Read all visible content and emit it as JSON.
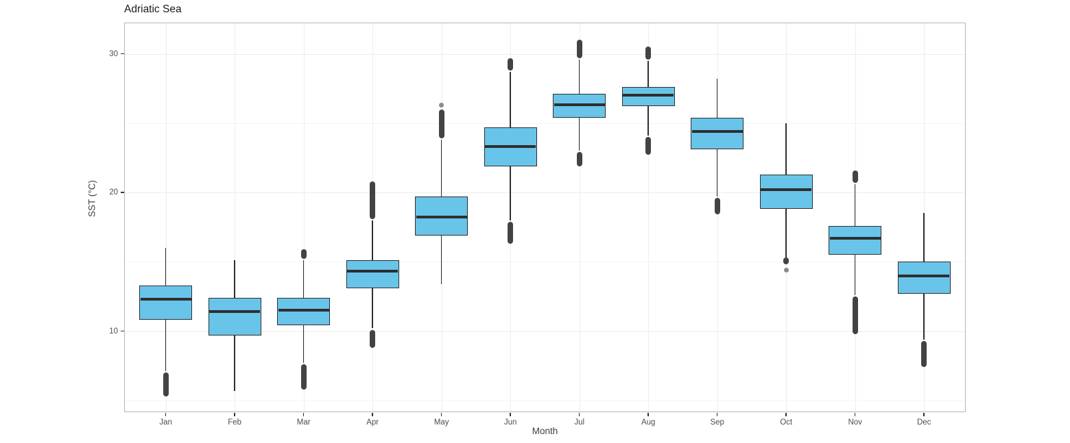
{
  "title": "Adriatic Sea",
  "chart_data": {
    "type": "boxplot",
    "title": "Adriatic Sea",
    "xlabel": "Month",
    "ylabel": "SST (°C)",
    "categories": [
      "Jan",
      "Feb",
      "Mar",
      "Apr",
      "May",
      "Jun",
      "Jul",
      "Aug",
      "Sep",
      "Oct",
      "Nov",
      "Dec"
    ],
    "yticks": [
      10,
      20,
      30
    ],
    "yticks_minor": [
      5,
      15,
      25
    ],
    "ylim": [
      4.1,
      32.2
    ],
    "grid": true,
    "legend": "none",
    "series": [
      {
        "month": "Jan",
        "whisker_low": 7.1,
        "q1": 10.8,
        "median": 12.3,
        "q3": 13.3,
        "whisker_high": 16.0,
        "outliers_low": [
          [
            5.3,
            7.0
          ]
        ],
        "outliers_high": []
      },
      {
        "month": "Feb",
        "whisker_low": 5.7,
        "q1": 9.7,
        "median": 11.4,
        "q3": 12.4,
        "whisker_high": 15.1,
        "outliers_low": [],
        "outliers_high": []
      },
      {
        "month": "Mar",
        "whisker_low": 7.7,
        "q1": 10.4,
        "median": 11.5,
        "q3": 12.4,
        "whisker_high": 15.1,
        "outliers_low": [
          [
            5.8,
            7.6
          ]
        ],
        "outliers_high": [
          [
            15.2,
            15.9
          ]
        ]
      },
      {
        "month": "Apr",
        "whisker_low": 10.2,
        "q1": 13.1,
        "median": 14.3,
        "q3": 15.1,
        "whisker_high": 18.0,
        "outliers_low": [
          [
            8.8,
            10.1
          ]
        ],
        "outliers_high": [
          [
            18.1,
            20.8
          ]
        ]
      },
      {
        "month": "May",
        "whisker_low": 13.4,
        "q1": 16.9,
        "median": 18.2,
        "q3": 19.7,
        "whisker_high": 23.8,
        "outliers_low": [],
        "outliers_high": [
          [
            23.9,
            26.0
          ],
          [
            26.2,
            26.4
          ]
        ]
      },
      {
        "month": "Jun",
        "whisker_low": 18.0,
        "q1": 21.9,
        "median": 23.3,
        "q3": 24.7,
        "whisker_high": 28.7,
        "outliers_low": [
          [
            16.3,
            17.9
          ]
        ],
        "outliers_high": [
          [
            28.8,
            29.7
          ]
        ]
      },
      {
        "month": "Jul",
        "whisker_low": 23.0,
        "q1": 25.4,
        "median": 26.3,
        "q3": 27.1,
        "whisker_high": 29.6,
        "outliers_low": [
          [
            21.9,
            22.9
          ]
        ],
        "outliers_high": [
          [
            29.7,
            31.0
          ]
        ]
      },
      {
        "month": "Aug",
        "whisker_low": 24.1,
        "q1": 26.2,
        "median": 27.0,
        "q3": 27.6,
        "whisker_high": 29.5,
        "outliers_low": [
          [
            22.7,
            24.0
          ]
        ],
        "outliers_high": [
          [
            29.6,
            30.5
          ]
        ]
      },
      {
        "month": "Sep",
        "whisker_low": 19.7,
        "q1": 23.1,
        "median": 24.4,
        "q3": 25.4,
        "whisker_high": 28.2,
        "outliers_low": [
          [
            18.4,
            19.6
          ]
        ],
        "outliers_high": []
      },
      {
        "month": "Oct",
        "whisker_low": 15.3,
        "q1": 18.8,
        "median": 20.2,
        "q3": 21.3,
        "whisker_high": 25.0,
        "outliers_low": [
          [
            14.3,
            14.5
          ],
          [
            14.8,
            15.3
          ]
        ],
        "outliers_high": []
      },
      {
        "month": "Nov",
        "whisker_low": 12.6,
        "q1": 15.5,
        "median": 16.7,
        "q3": 17.6,
        "whisker_high": 20.6,
        "outliers_low": [
          [
            9.8,
            12.5
          ]
        ],
        "outliers_high": [
          [
            20.7,
            21.6
          ]
        ]
      },
      {
        "month": "Dec",
        "whisker_low": 9.4,
        "q1": 12.7,
        "median": 14.0,
        "q3": 15.0,
        "whisker_high": 18.5,
        "outliers_low": [
          [
            7.4,
            9.3
          ]
        ],
        "outliers_high": []
      }
    ],
    "colors": {
      "box_fill": "#69c4e9",
      "box_stroke": "#2e2e2e",
      "outlier": "#333333",
      "grid_major": "#ececec",
      "grid_minor": "#f5f5f5",
      "panel_border": "#b5b5b5",
      "axis_text": "#4d4d4d",
      "title_text": "#1a1a1a"
    }
  }
}
